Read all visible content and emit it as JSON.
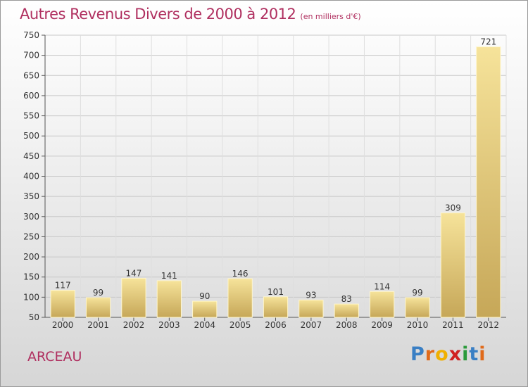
{
  "title": "Autres Revenus Divers de 2000 à 2012",
  "subtitle": "(en milliers d'€)",
  "location": "ARCEAU",
  "logo": {
    "text": "Proxiti",
    "letters": [
      "P",
      "r",
      "o",
      "x",
      "i",
      "t",
      "i"
    ],
    "colors": [
      "#3a7fc4",
      "#e06a1a",
      "#f0b000",
      "#d02020",
      "#2a9a3a",
      "#3a7fc4",
      "#e06a1a"
    ]
  },
  "colors": {
    "title": "#b03060",
    "bar_light": "#f2dc8e",
    "bar_dark": "#c8a95a",
    "grid": "#c8c8c8"
  },
  "chart_data": {
    "type": "bar",
    "title": "Autres Revenus Divers de 2000 à 2012",
    "xlabel": "",
    "ylabel": "",
    "categories": [
      "2000",
      "2001",
      "2002",
      "2003",
      "2004",
      "2005",
      "2006",
      "2007",
      "2008",
      "2009",
      "2010",
      "2011",
      "2012"
    ],
    "values": [
      117,
      99,
      147,
      141,
      90,
      146,
      101,
      93,
      83,
      114,
      99,
      309,
      721
    ],
    "ylim": [
      50,
      750
    ],
    "yticks": [
      50,
      100,
      150,
      200,
      250,
      300,
      350,
      400,
      450,
      500,
      550,
      600,
      650,
      700,
      750
    ],
    "grid": true,
    "data_labels": true
  }
}
